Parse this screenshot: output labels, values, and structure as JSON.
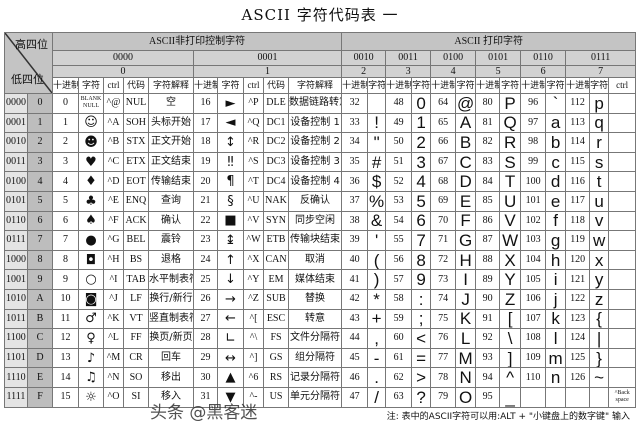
{
  "title": "ASCII  字符代码表  一",
  "header": {
    "high_nibble": "高四位",
    "low_nibble": "低四位",
    "nonprint_title": "ASCII非打印控制字符",
    "print_title": "ASCII 打印字符",
    "groups": [
      {
        "bin": "0000",
        "hex": "0"
      },
      {
        "bin": "0001",
        "hex": "1"
      },
      {
        "bin": "0010",
        "hex": "2"
      },
      {
        "bin": "0011",
        "hex": "3"
      },
      {
        "bin": "0100",
        "hex": "4"
      },
      {
        "bin": "0101",
        "hex": "5"
      },
      {
        "bin": "0110",
        "hex": "6"
      },
      {
        "bin": "0111",
        "hex": "7"
      }
    ],
    "col_dec": "十进制",
    "col_char": "字符",
    "col_ctrl": "ctrl",
    "col_code": "代码",
    "col_desc": "字符解释"
  },
  "rows": [
    {
      "bin": "0000",
      "hex": "0",
      "c0": [
        "0",
        "BLANK NULL",
        "^@",
        "NUL",
        "空"
      ],
      "c1": [
        "16",
        "►",
        "^P",
        "DLE",
        "数据链路转意"
      ],
      "p": [
        [
          "32",
          " "
        ],
        [
          "48",
          "0"
        ],
        [
          "64",
          "@"
        ],
        [
          "80",
          "P"
        ],
        [
          "96",
          "`"
        ],
        [
          "112",
          "p"
        ]
      ],
      "ctrl7": ""
    },
    {
      "bin": "0001",
      "hex": "1",
      "c0": [
        "1",
        "☺",
        "^A",
        "SOH",
        "头标开始"
      ],
      "c1": [
        "17",
        "◄",
        "^Q",
        "DC1",
        "设备控制 1"
      ],
      "p": [
        [
          "33",
          "!"
        ],
        [
          "49",
          "1"
        ],
        [
          "65",
          "A"
        ],
        [
          "81",
          "Q"
        ],
        [
          "97",
          "a"
        ],
        [
          "113",
          "q"
        ]
      ],
      "ctrl7": ""
    },
    {
      "bin": "0010",
      "hex": "2",
      "c0": [
        "2",
        "☻",
        "^B",
        "STX",
        "正文开始"
      ],
      "c1": [
        "18",
        "↕",
        "^R",
        "DC2",
        "设备控制 2"
      ],
      "p": [
        [
          "34",
          "\""
        ],
        [
          "50",
          "2"
        ],
        [
          "66",
          "B"
        ],
        [
          "82",
          "R"
        ],
        [
          "98",
          "b"
        ],
        [
          "114",
          "r"
        ]
      ],
      "ctrl7": ""
    },
    {
      "bin": "0011",
      "hex": "3",
      "c0": [
        "3",
        "♥",
        "^C",
        "ETX",
        "正文结束"
      ],
      "c1": [
        "19",
        "‼",
        "^S",
        "DC3",
        "设备控制 3"
      ],
      "p": [
        [
          "35",
          "#"
        ],
        [
          "51",
          "3"
        ],
        [
          "67",
          "C"
        ],
        [
          "83",
          "S"
        ],
        [
          "99",
          "c"
        ],
        [
          "115",
          "s"
        ]
      ],
      "ctrl7": ""
    },
    {
      "bin": "0100",
      "hex": "4",
      "c0": [
        "4",
        "♦",
        "^D",
        "EOT",
        "传输结束"
      ],
      "c1": [
        "20",
        "¶",
        "^T",
        "DC4",
        "设备控制 4"
      ],
      "p": [
        [
          "36",
          "$"
        ],
        [
          "52",
          "4"
        ],
        [
          "68",
          "D"
        ],
        [
          "84",
          "T"
        ],
        [
          "100",
          "d"
        ],
        [
          "116",
          "t"
        ]
      ],
      "ctrl7": ""
    },
    {
      "bin": "0101",
      "hex": "5",
      "c0": [
        "5",
        "♣",
        "^E",
        "ENQ",
        "查询"
      ],
      "c1": [
        "21",
        "§",
        "^U",
        "NAK",
        "反确认"
      ],
      "p": [
        [
          "37",
          "%"
        ],
        [
          "53",
          "5"
        ],
        [
          "69",
          "E"
        ],
        [
          "85",
          "U"
        ],
        [
          "101",
          "e"
        ],
        [
          "117",
          "u"
        ]
      ],
      "ctrl7": ""
    },
    {
      "bin": "0110",
      "hex": "6",
      "c0": [
        "6",
        "♠",
        "^F",
        "ACK",
        "确认"
      ],
      "c1": [
        "22",
        "■",
        "^V",
        "SYN",
        "同步空闲"
      ],
      "p": [
        [
          "38",
          "&"
        ],
        [
          "54",
          "6"
        ],
        [
          "70",
          "F"
        ],
        [
          "86",
          "V"
        ],
        [
          "102",
          "f"
        ],
        [
          "118",
          "v"
        ]
      ],
      "ctrl7": ""
    },
    {
      "bin": "0111",
      "hex": "7",
      "c0": [
        "7",
        "●",
        "^G",
        "BEL",
        "震铃"
      ],
      "c1": [
        "23",
        "↨",
        "^W",
        "ETB",
        "传输块结束"
      ],
      "p": [
        [
          "39",
          "'"
        ],
        [
          "55",
          "7"
        ],
        [
          "71",
          "G"
        ],
        [
          "87",
          "W"
        ],
        [
          "103",
          "g"
        ],
        [
          "119",
          "w"
        ]
      ],
      "ctrl7": ""
    },
    {
      "bin": "1000",
      "hex": "8",
      "c0": [
        "8",
        "◘",
        "^H",
        "BS",
        "退格"
      ],
      "c1": [
        "24",
        "↑",
        "^X",
        "CAN",
        "取消"
      ],
      "p": [
        [
          "40",
          "("
        ],
        [
          "56",
          "8"
        ],
        [
          "72",
          "H"
        ],
        [
          "88",
          "X"
        ],
        [
          "104",
          "h"
        ],
        [
          "120",
          "x"
        ]
      ],
      "ctrl7": ""
    },
    {
      "bin": "1001",
      "hex": "9",
      "c0": [
        "9",
        "○",
        "^I",
        "TAB",
        "水平制表符"
      ],
      "c1": [
        "25",
        "↓",
        "^Y",
        "EM",
        "媒体结束"
      ],
      "p": [
        [
          "41",
          ")"
        ],
        [
          "57",
          "9"
        ],
        [
          "73",
          "I"
        ],
        [
          "89",
          "Y"
        ],
        [
          "105",
          "i"
        ],
        [
          "121",
          "y"
        ]
      ],
      "ctrl7": ""
    },
    {
      "bin": "1010",
      "hex": "A",
      "c0": [
        "10",
        "◙",
        "^J",
        "LF",
        "换行/新行"
      ],
      "c1": [
        "26",
        "→",
        "^Z",
        "SUB",
        "替换"
      ],
      "p": [
        [
          "42",
          "*"
        ],
        [
          "58",
          ":"
        ],
        [
          "74",
          "J"
        ],
        [
          "90",
          "Z"
        ],
        [
          "106",
          "j"
        ],
        [
          "122",
          "z"
        ]
      ],
      "ctrl7": ""
    },
    {
      "bin": "1011",
      "hex": "B",
      "c0": [
        "11",
        "♂",
        "^K",
        "VT",
        "竖直制表符"
      ],
      "c1": [
        "27",
        "←",
        "^[",
        "ESC",
        "转意"
      ],
      "p": [
        [
          "43",
          "+"
        ],
        [
          "59",
          ";"
        ],
        [
          "75",
          "K"
        ],
        [
          "91",
          "["
        ],
        [
          "107",
          "k"
        ],
        [
          "123",
          "{"
        ]
      ],
      "ctrl7": ""
    },
    {
      "bin": "1100",
      "hex": "C",
      "c0": [
        "12",
        "♀",
        "^L",
        "FF",
        "换页/新页"
      ],
      "c1": [
        "28",
        "∟",
        "^\\",
        "FS",
        "文件分隔符"
      ],
      "p": [
        [
          "44",
          ","
        ],
        [
          "60",
          "<"
        ],
        [
          "76",
          "L"
        ],
        [
          "92",
          "\\"
        ],
        [
          "108",
          "l"
        ],
        [
          "124",
          "|"
        ]
      ],
      "ctrl7": ""
    },
    {
      "bin": "1101",
      "hex": "D",
      "c0": [
        "13",
        "♪",
        "^M",
        "CR",
        "回车"
      ],
      "c1": [
        "29",
        "↔",
        "^]",
        "GS",
        "组分隔符"
      ],
      "p": [
        [
          "45",
          "-"
        ],
        [
          "61",
          "="
        ],
        [
          "77",
          "M"
        ],
        [
          "93",
          "]"
        ],
        [
          "109",
          "m"
        ],
        [
          "125",
          "}"
        ]
      ],
      "ctrl7": ""
    },
    {
      "bin": "1110",
      "hex": "E",
      "c0": [
        "14",
        "♫",
        "^N",
        "SO",
        "移出"
      ],
      "c1": [
        "30",
        "▲",
        "^6",
        "RS",
        "记录分隔符"
      ],
      "p": [
        [
          "46",
          "."
        ],
        [
          "62",
          ">"
        ],
        [
          "78",
          "N"
        ],
        [
          "94",
          "^"
        ],
        [
          "110",
          "n"
        ],
        [
          "126",
          "~"
        ]
      ],
      "ctrl7": ""
    },
    {
      "bin": "1111",
      "hex": "F",
      "c0": [
        "15",
        "☼",
        "^O",
        "SI",
        "移入"
      ],
      "c1": [
        "31",
        "▼",
        "^-",
        "US",
        "单元分隔符"
      ],
      "p": [
        [
          "47",
          "/"
        ],
        [
          "63",
          "?"
        ],
        [
          "79",
          "O"
        ],
        [
          "95",
          "_"
        ],
        [
          "",
          ""
        ],
        [
          "",
          ""
        ]
      ],
      "ctrl7": "^Back space"
    }
  ],
  "footnote": "注: 表中的ASCII字符可以用:ALT + \"小键盘上的数字键\" 输入",
  "watermark": "头条 @黑客迷"
}
